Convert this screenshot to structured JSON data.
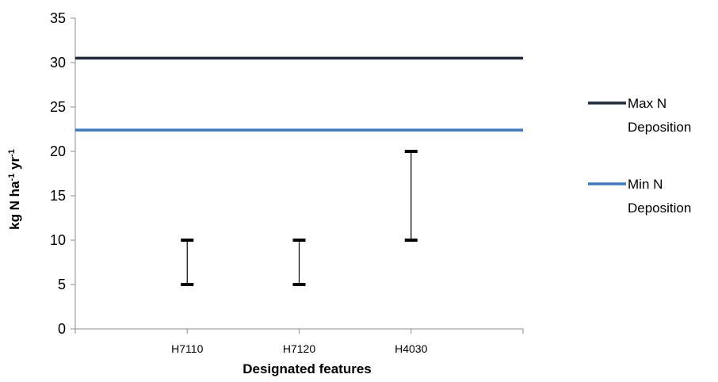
{
  "chart_data": {
    "type": "line",
    "title": "",
    "xlabel": "Designated features",
    "ylabel": {
      "base": "kg N ha",
      "sup1": "-1",
      "mid": " yr",
      "sup2": "-1"
    },
    "ylim": [
      0,
      35
    ],
    "yticks": [
      "0",
      "5",
      "10",
      "15",
      "20",
      "25",
      "30",
      "35"
    ],
    "categories": [
      "H7110",
      "H7120",
      "H4030"
    ],
    "ranges": [
      {
        "category": "H7110",
        "low": 5,
        "high": 10
      },
      {
        "category": "H7120",
        "low": 5,
        "high": 10
      },
      {
        "category": "H4030",
        "low": 10,
        "high": 20
      }
    ],
    "series": [
      {
        "name": [
          "Max N",
          "Deposition"
        ],
        "value": 30.5,
        "color": "#1f2a3c"
      },
      {
        "name": [
          "Min N",
          "Deposition"
        ],
        "value": 22.4,
        "color": "#3a7bbf"
      }
    ],
    "legend_position": "right",
    "grid": false
  }
}
